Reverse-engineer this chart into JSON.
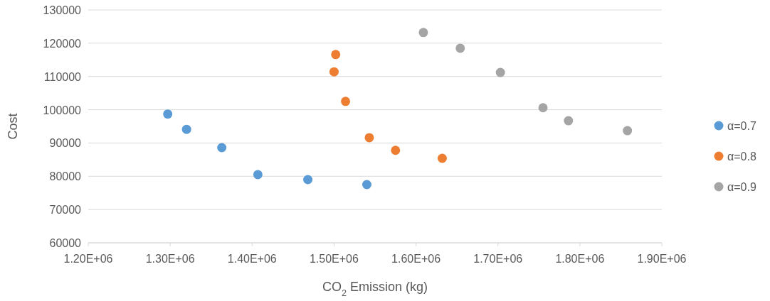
{
  "chart_data": {
    "type": "scatter",
    "xlabel": "CO$_{2}$ Emission (kg)",
    "ylabel": "Cost",
    "xlim": [
      1200000,
      1900000
    ],
    "xticks": [
      {
        "value": 1200000,
        "label": "1.20E+06"
      },
      {
        "value": 1300000,
        "label": "1.30E+06"
      },
      {
        "value": 1400000,
        "label": "1.40E+06"
      },
      {
        "value": 1500000,
        "label": "1.50E+06"
      },
      {
        "value": 1600000,
        "label": "1.60E+06"
      },
      {
        "value": 1700000,
        "label": "1.70E+06"
      },
      {
        "value": 1800000,
        "label": "1.80E+06"
      },
      {
        "value": 1900000,
        "label": "1.90E+06"
      }
    ],
    "ylim": [
      60000,
      130000
    ],
    "yticks": [
      60000,
      70000,
      80000,
      90000,
      100000,
      110000,
      120000,
      130000
    ],
    "grid": "y",
    "legend": "right",
    "marker": "circle",
    "series": [
      {
        "name": "α=0.7",
        "color": "#5b9bd5",
        "x": [
          1297000,
          1320000,
          1363000,
          1407000,
          1468000,
          1540000
        ],
        "values": [
          98700,
          94100,
          88600,
          80500,
          79000,
          77500
        ]
      },
      {
        "name": "α=0.8",
        "color": "#ed7d31",
        "x": [
          1502000,
          1500000,
          1514000,
          1543000,
          1575000,
          1632000
        ],
        "values": [
          116600,
          111400,
          102500,
          91600,
          87800,
          85400
        ]
      },
      {
        "name": "α=0.9",
        "color": "#a5a5a5",
        "x": [
          1609000,
          1654000,
          1703000,
          1755000,
          1786000,
          1858000
        ],
        "values": [
          123200,
          118500,
          111200,
          100600,
          96700,
          93700
        ]
      }
    ]
  }
}
